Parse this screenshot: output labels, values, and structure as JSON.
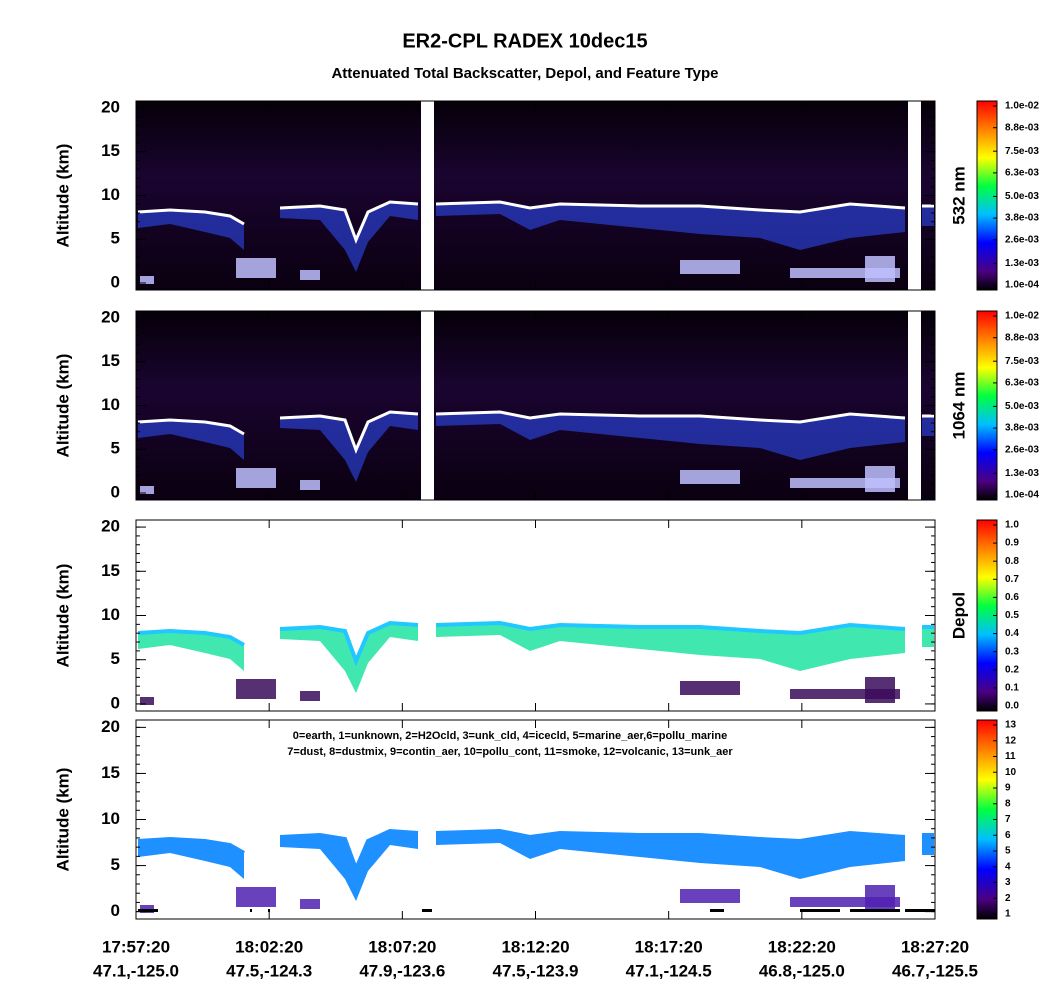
{
  "title": "ER2-CPL RADEX 10dec15",
  "subtitle": "Attenuated Total Backscatter, Depol, and Feature Type",
  "xticks": [
    {
      "time": "17:57:20",
      "location": "47.1,-125.0"
    },
    {
      "time": "18:02:20",
      "location": "47.5,-124.3"
    },
    {
      "time": "18:07:20",
      "location": "47.9,-123.6"
    },
    {
      "time": "18:12:20",
      "location": "47.5,-123.9"
    },
    {
      "time": "18:17:20",
      "location": "47.1,-124.5"
    },
    {
      "time": "18:22:20",
      "location": "46.8,-125.0"
    },
    {
      "time": "18:27:20",
      "location": "46.7,-125.5"
    }
  ],
  "chart_data": [
    {
      "type": "heatmap",
      "ylabel": "Altitude (km)",
      "ylim": [
        -0.8,
        20.8
      ],
      "yticks": [
        0,
        5,
        10,
        15,
        20
      ],
      "colorbar": {
        "label": "532 nm",
        "lim": [
          0.0001,
          0.01
        ],
        "ticks": [
          {
            "value": 0.0001,
            "label": "1.0e-04"
          },
          {
            "value": 0.0013,
            "label": "1.3e-03"
          },
          {
            "value": 0.0026,
            "label": "2.6e-03"
          },
          {
            "value": 0.0038,
            "label": "3.8e-03"
          },
          {
            "value": 0.005,
            "label": "5.0e-03"
          },
          {
            "value": 0.0063,
            "label": "6.3e-03"
          },
          {
            "value": 0.0075,
            "label": "7.5e-03"
          },
          {
            "value": 0.0088,
            "label": "8.8e-03"
          },
          {
            "value": 0.01,
            "label": "1.0e-02"
          }
        ]
      }
    },
    {
      "type": "heatmap",
      "ylabel": "Altitude (km)",
      "ylim": [
        -0.8,
        20.8
      ],
      "yticks": [
        0,
        5,
        10,
        15,
        20
      ],
      "colorbar": {
        "label": "1064 nm",
        "lim": [
          0.0001,
          0.01
        ],
        "ticks": [
          {
            "value": 0.0001,
            "label": "1.0e-04"
          },
          {
            "value": 0.0013,
            "label": "1.3e-03"
          },
          {
            "value": 0.0026,
            "label": "2.6e-03"
          },
          {
            "value": 0.0038,
            "label": "3.8e-03"
          },
          {
            "value": 0.005,
            "label": "5.0e-03"
          },
          {
            "value": 0.0063,
            "label": "6.3e-03"
          },
          {
            "value": 0.0075,
            "label": "7.5e-03"
          },
          {
            "value": 0.0088,
            "label": "8.8e-03"
          },
          {
            "value": 0.01,
            "label": "1.0e-02"
          }
        ]
      }
    },
    {
      "type": "heatmap",
      "ylabel": "Altitude (km)",
      "ylim": [
        -0.8,
        20.8
      ],
      "yticks": [
        0,
        5,
        10,
        15,
        20
      ],
      "colorbar": {
        "label": "Depol",
        "lim": [
          0,
          1
        ],
        "ticks": [
          {
            "value": 0,
            "label": "0.0"
          },
          {
            "value": 0.1,
            "label": "0.1"
          },
          {
            "value": 0.2,
            "label": "0.2"
          },
          {
            "value": 0.3,
            "label": "0.3"
          },
          {
            "value": 0.4,
            "label": "0.4"
          },
          {
            "value": 0.5,
            "label": "0.5"
          },
          {
            "value": 0.6,
            "label": "0.6"
          },
          {
            "value": 0.7,
            "label": "0.7"
          },
          {
            "value": 0.8,
            "label": "0.8"
          },
          {
            "value": 0.9,
            "label": "0.9"
          },
          {
            "value": 1,
            "label": "1.0"
          }
        ]
      }
    },
    {
      "type": "heatmap",
      "ylabel": "Altitude (km)",
      "ylim": [
        -0.8,
        20.8
      ],
      "yticks": [
        0,
        5,
        10,
        15,
        20
      ],
      "legend_lines": [
        "0=earth, 1=unknown, 2=H2Ocld, 3=unk_cld, 4=icecld, 5=marine_aer,6=pollu_marine",
        "7=dust, 8=dustmix, 9=contin_aer, 10=pollu_cont, 11=smoke, 12=volcanic, 13=unk_aer"
      ],
      "colorbar": {
        "lim": [
          1,
          13
        ],
        "ticks": [
          1,
          2,
          3,
          4,
          5,
          6,
          7,
          8,
          9,
          10,
          11,
          12,
          13
        ]
      }
    }
  ]
}
